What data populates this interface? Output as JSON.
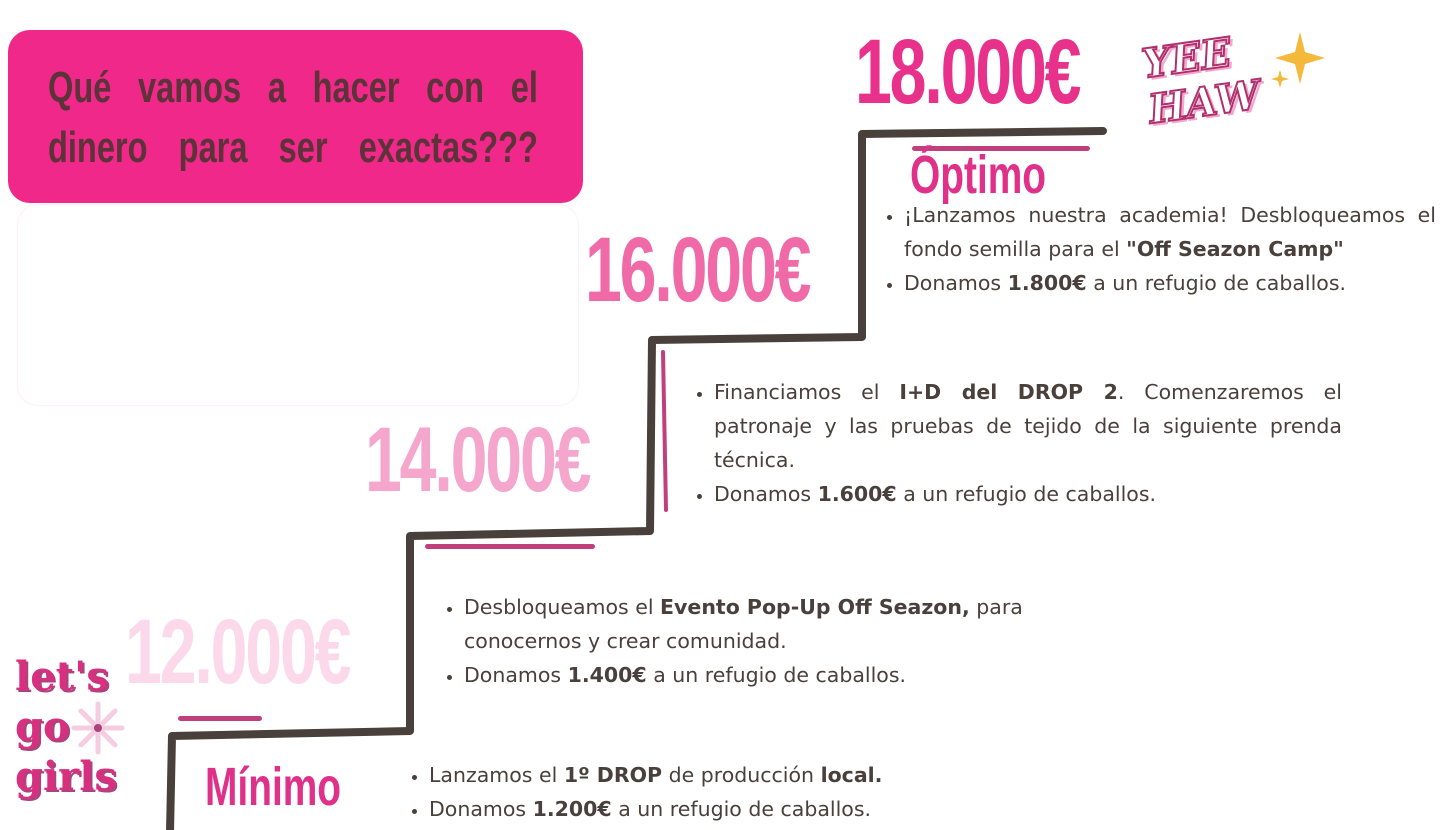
{
  "header": {
    "question": "Qué vamos a hacer con el dinero para ser exactas???"
  },
  "stickers": {
    "yeehaw": "YEE HAW",
    "letsgo": [
      "let's",
      "go",
      "girls"
    ]
  },
  "colors": {
    "brand_pink": "#f0288a",
    "stairs": "#4a403b",
    "text": "#4a403b"
  },
  "levels": [
    {
      "amount": "18.000€",
      "label": "Óptimo",
      "color": "#e8318a",
      "bullets": [
        {
          "parts": [
            {
              "t": "¡Lanzamos nuestra academia! Desbloqueamos el fondo semilla para el ",
              "b": false
            },
            {
              "t": "\"Off Seazon Camp\"",
              "b": true
            }
          ]
        },
        {
          "parts": [
            {
              "t": "Donamos ",
              "b": false
            },
            {
              "t": "1.800€",
              "b": true
            },
            {
              "t": " a un refugio de caballos.",
              "b": false
            }
          ]
        }
      ]
    },
    {
      "amount": "16.000€",
      "color": "#f06aa8",
      "bullets": [
        {
          "parts": [
            {
              "t": "Financiamos el ",
              "b": false
            },
            {
              "t": "I+D del DROP 2",
              "b": true
            },
            {
              "t": ". Comenzaremos el patronaje y las pruebas de tejido de la siguiente prenda técnica.",
              "b": false
            }
          ]
        },
        {
          "parts": [
            {
              "t": "Donamos ",
              "b": false
            },
            {
              "t": "1.600€",
              "b": true
            },
            {
              "t": " a un refugio de caballos.",
              "b": false
            }
          ]
        }
      ]
    },
    {
      "amount": "14.000€",
      "color": "#f4a6cc",
      "bullets": [
        {
          "parts": [
            {
              "t": "Desbloqueamos el ",
              "b": false
            },
            {
              "t": "Evento Pop-Up Off Seazon,",
              "b": true
            },
            {
              "t": " para conocernos y crear comunidad.",
              "b": false
            }
          ]
        },
        {
          "parts": [
            {
              "t": "Donamos ",
              "b": false
            },
            {
              "t": "1.400€",
              "b": true
            },
            {
              "t": " a un refugio de caballos.",
              "b": false
            }
          ]
        }
      ]
    },
    {
      "amount": "12.000€",
      "label": "Mínimo",
      "color": "#fbd9ea",
      "bullets": [
        {
          "parts": [
            {
              "t": "Lanzamos el ",
              "b": false
            },
            {
              "t": "1º DROP",
              "b": true
            },
            {
              "t": " de producción ",
              "b": false
            },
            {
              "t": "local.",
              "b": true
            }
          ]
        },
        {
          "parts": [
            {
              "t": "Donamos ",
              "b": false
            },
            {
              "t": "1.200€",
              "b": true
            },
            {
              "t": " a un refugio de caballos.",
              "b": false
            }
          ]
        }
      ]
    }
  ]
}
